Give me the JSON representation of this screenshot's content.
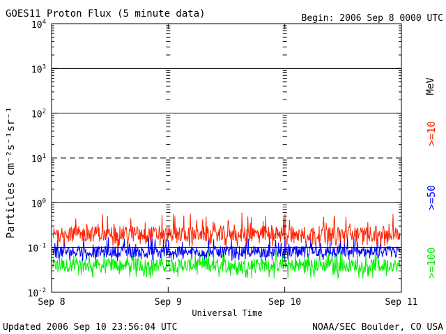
{
  "header": {
    "title": "GOES11 Proton Flux (5 minute data)",
    "begin": "Begin: 2006 Sep 8 0000 UTC"
  },
  "footer": {
    "updated": "Updated 2006 Sep 10 23:56:04 UTC",
    "credit": "NOAA/SEC Boulder, CO USA"
  },
  "chart_data": {
    "type": "line",
    "title": "GOES11 Proton Flux (5 minute data)",
    "xlabel": "Universal Time",
    "ylabel": "Particles cm⁻²s⁻¹sr⁻¹",
    "y_scale": "log",
    "ylim": [
      0.01,
      10000
    ],
    "y_ticks": [
      {
        "base": "10",
        "exp": "-2",
        "value": 0.01
      },
      {
        "base": "10",
        "exp": "-1",
        "value": 0.1
      },
      {
        "base": "10",
        "exp": "0",
        "value": 1
      },
      {
        "base": "10",
        "exp": "1",
        "value": 10
      },
      {
        "base": "10",
        "exp": "2",
        "value": 100
      },
      {
        "base": "10",
        "exp": "3",
        "value": 1000
      },
      {
        "base": "10",
        "exp": "4",
        "value": 10000
      }
    ],
    "x_range": [
      "2006-09-08 00:00",
      "2006-09-11 00:00"
    ],
    "x_ticks": [
      {
        "label": "Sep 8",
        "value": "2006-09-08"
      },
      {
        "label": "Sep 9",
        "value": "2006-09-09"
      },
      {
        "label": "Sep 10",
        "value": "2006-09-10"
      },
      {
        "label": "Sep 11",
        "value": "2006-09-11"
      }
    ],
    "unit_label": "MeV",
    "threshold_lines": [
      {
        "value": 10,
        "style": "dashed"
      },
      {
        "value": 1,
        "style": "solid"
      },
      {
        "value": 100,
        "style": "solid"
      },
      {
        "value": 1000,
        "style": "solid"
      },
      {
        "value": 0.1,
        "style": "solid"
      }
    ],
    "series": [
      {
        "name": ">=10",
        "color": "#ff2200",
        "typical": 0.2,
        "range": [
          0.1,
          0.6
        ]
      },
      {
        "name": ">=50",
        "color": "#0000ff",
        "typical": 0.08,
        "range": [
          0.05,
          0.18
        ]
      },
      {
        "name": ">=100",
        "color": "#00ee00",
        "typical": 0.04,
        "range": [
          0.02,
          0.09
        ]
      }
    ]
  }
}
